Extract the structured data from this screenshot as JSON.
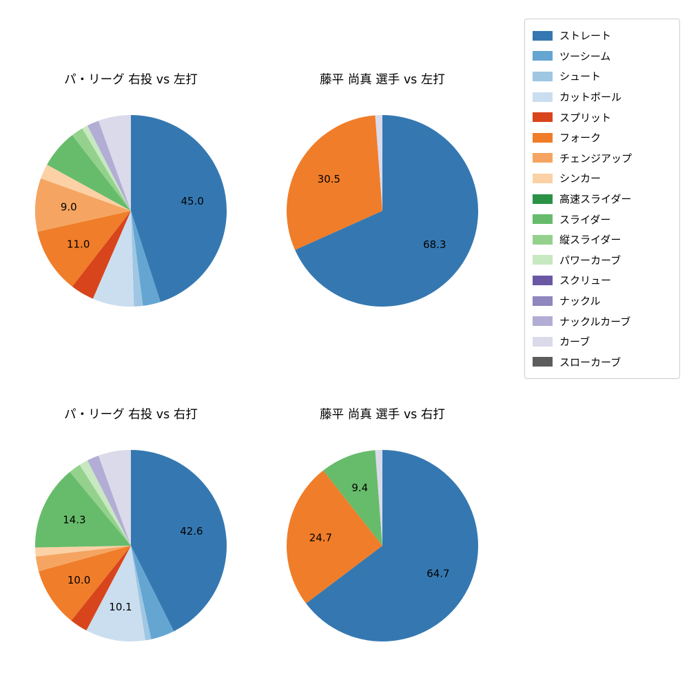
{
  "figure": {
    "background": "#ffffff"
  },
  "style": {
    "label_color": "#000000",
    "label_font_size": 15,
    "pct_distance": 0.65
  },
  "legend": {
    "items": [
      {
        "key": "straight",
        "label": "ストレート",
        "color": "#3578b1"
      },
      {
        "key": "two-seam",
        "label": "ツーシーム",
        "color": "#64a6d1"
      },
      {
        "key": "shoot",
        "label": "シュート",
        "color": "#9fc6e3"
      },
      {
        "key": "cut-ball",
        "label": "カットボール",
        "color": "#cadef0"
      },
      {
        "key": "split",
        "label": "スプリット",
        "color": "#d8441c"
      },
      {
        "key": "fork",
        "label": "フォーク",
        "color": "#f07d29"
      },
      {
        "key": "changeup",
        "label": "チェンジアップ",
        "color": "#f5a561"
      },
      {
        "key": "sinker",
        "label": "シンカー",
        "color": "#fbd1a5"
      },
      {
        "key": "fast-slider",
        "label": "高速スライダー",
        "color": "#2a9245"
      },
      {
        "key": "slider",
        "label": "スライダー",
        "color": "#67bc6b"
      },
      {
        "key": "vertical-slider",
        "label": "縦スライダー",
        "color": "#94d18d"
      },
      {
        "key": "power-curve",
        "label": "パワーカーブ",
        "color": "#c7e8c0"
      },
      {
        "key": "screw",
        "label": "スクリュー",
        "color": "#6a58a5"
      },
      {
        "key": "knuckle",
        "label": "ナックル",
        "color": "#8f87bd"
      },
      {
        "key": "knuckle-curve",
        "label": "ナックルカーブ",
        "color": "#b2add4"
      },
      {
        "key": "curve",
        "label": "カーブ",
        "color": "#dadaeb"
      },
      {
        "key": "slow-curve",
        "label": "スローカーブ",
        "color": "#5c5c5c"
      }
    ]
  },
  "chart_data": [
    {
      "type": "pie",
      "title": "パ・リーグ 右投 vs 左打",
      "start_angle_deg": 0,
      "direction": "clockwise-from-top",
      "slices": [
        {
          "key": "straight",
          "value": 45.0,
          "label": "45.0"
        },
        {
          "key": "two-seam",
          "value": 3.0
        },
        {
          "key": "shoot",
          "value": 1.5
        },
        {
          "key": "cut-ball",
          "value": 7.0
        },
        {
          "key": "split",
          "value": 4.0
        },
        {
          "key": "fork",
          "value": 11.0,
          "label": "11.0"
        },
        {
          "key": "changeup",
          "value": 9.0,
          "label": "9.0"
        },
        {
          "key": "sinker",
          "value": 2.5
        },
        {
          "key": "slider",
          "value": 6.5
        },
        {
          "key": "vertical-slider",
          "value": 2.0
        },
        {
          "key": "power-curve",
          "value": 1.0
        },
        {
          "key": "knuckle-curve",
          "value": 2.0
        },
        {
          "key": "curve",
          "value": 5.5
        }
      ]
    },
    {
      "type": "pie",
      "title": "藤平 尚真 選手 vs 左打",
      "start_angle_deg": 0,
      "direction": "clockwise-from-top",
      "slices": [
        {
          "key": "straight",
          "value": 68.3,
          "label": "68.3"
        },
        {
          "key": "fork",
          "value": 30.5,
          "label": "30.5"
        },
        {
          "key": "curve",
          "value": 1.2
        }
      ]
    },
    {
      "type": "pie",
      "title": "パ・リーグ 右投 vs 右打",
      "start_angle_deg": 0,
      "direction": "clockwise-from-top",
      "slices": [
        {
          "key": "straight",
          "value": 42.6,
          "label": "42.6"
        },
        {
          "key": "two-seam",
          "value": 4.0
        },
        {
          "key": "shoot",
          "value": 1.0
        },
        {
          "key": "cut-ball",
          "value": 10.1,
          "label": "10.1"
        },
        {
          "key": "split",
          "value": 3.0
        },
        {
          "key": "fork",
          "value": 10.0,
          "label": "10.0"
        },
        {
          "key": "changeup",
          "value": 2.5
        },
        {
          "key": "sinker",
          "value": 1.5
        },
        {
          "key": "slider",
          "value": 14.3,
          "label": "14.3"
        },
        {
          "key": "vertical-slider",
          "value": 2.0
        },
        {
          "key": "power-curve",
          "value": 1.5
        },
        {
          "key": "knuckle-curve",
          "value": 2.0
        },
        {
          "key": "curve",
          "value": 5.5
        }
      ]
    },
    {
      "type": "pie",
      "title": "藤平 尚真 選手 vs 右打",
      "start_angle_deg": 0,
      "direction": "clockwise-from-top",
      "slices": [
        {
          "key": "straight",
          "value": 64.7,
          "label": "64.7"
        },
        {
          "key": "fork",
          "value": 24.7,
          "label": "24.7"
        },
        {
          "key": "slider",
          "value": 9.4,
          "label": "9.4"
        },
        {
          "key": "curve",
          "value": 1.2
        }
      ]
    }
  ]
}
